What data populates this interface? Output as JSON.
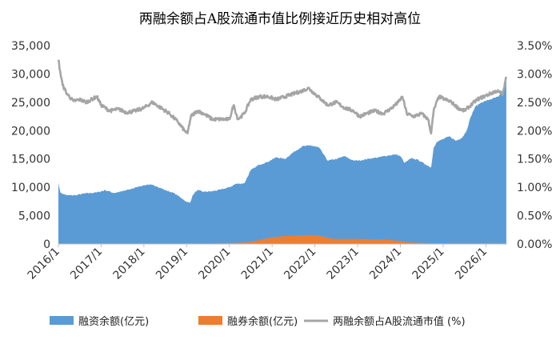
{
  "chart_data": {
    "type": "area",
    "title": "两融余额占A股流通市值比例接近历史相对高位",
    "x_ticks": [
      "2016/1",
      "2017/1",
      "2018/1",
      "2019/1",
      "2020/1",
      "2021/1",
      "2022/1",
      "2023/1",
      "2024/1",
      "2025/1",
      "2026/1"
    ],
    "x_range": [
      2016.0,
      2026.5
    ],
    "y_left": {
      "ticks": [
        "0",
        "5,000",
        "10,000",
        "15,000",
        "20,000",
        "25,000",
        "30,000",
        "35,000"
      ],
      "range": [
        0,
        35000
      ]
    },
    "y_right": {
      "ticks": [
        "0.00%",
        "0.50%",
        "1.00%",
        "1.50%",
        "2.00%",
        "2.50%",
        "3.00%",
        "3.50%"
      ],
      "range": [
        0,
        3.5
      ]
    },
    "legend_position": "bottom",
    "grid": false,
    "series": [
      {
        "name": "融资余额(亿元)",
        "type": "area",
        "axis": "left",
        "color": "#5B9BD5",
        "points": [
          [
            2016.0,
            10800
          ],
          [
            2016.05,
            9000
          ],
          [
            2016.2,
            8600
          ],
          [
            2016.4,
            8600
          ],
          [
            2016.6,
            8900
          ],
          [
            2016.9,
            9100
          ],
          [
            2017.1,
            9500
          ],
          [
            2017.3,
            9000
          ],
          [
            2017.5,
            9300
          ],
          [
            2017.7,
            9700
          ],
          [
            2017.9,
            10200
          ],
          [
            2018.1,
            10500
          ],
          [
            2018.3,
            10200
          ],
          [
            2018.5,
            9500
          ],
          [
            2018.7,
            9000
          ],
          [
            2018.9,
            8000
          ],
          [
            2019.0,
            7400
          ],
          [
            2019.08,
            7300
          ],
          [
            2019.15,
            8700
          ],
          [
            2019.25,
            9500
          ],
          [
            2019.4,
            9200
          ],
          [
            2019.6,
            9300
          ],
          [
            2019.8,
            9600
          ],
          [
            2020.0,
            10000
          ],
          [
            2020.15,
            10600
          ],
          [
            2020.35,
            10700
          ],
          [
            2020.5,
            13000
          ],
          [
            2020.7,
            14000
          ],
          [
            2020.9,
            14500
          ],
          [
            2021.1,
            15300
          ],
          [
            2021.3,
            15000
          ],
          [
            2021.5,
            16200
          ],
          [
            2021.7,
            17200
          ],
          [
            2021.9,
            17400
          ],
          [
            2022.1,
            17000
          ],
          [
            2022.3,
            14700
          ],
          [
            2022.5,
            15000
          ],
          [
            2022.7,
            15500
          ],
          [
            2022.9,
            14700
          ],
          [
            2023.1,
            14800
          ],
          [
            2023.3,
            15100
          ],
          [
            2023.5,
            15300
          ],
          [
            2023.7,
            15600
          ],
          [
            2023.9,
            15800
          ],
          [
            2024.0,
            15500
          ],
          [
            2024.1,
            14300
          ],
          [
            2024.25,
            15100
          ],
          [
            2024.4,
            14900
          ],
          [
            2024.6,
            14000
          ],
          [
            2024.72,
            13500
          ],
          [
            2024.78,
            17000
          ],
          [
            2024.85,
            18000
          ],
          [
            2025.0,
            18500
          ],
          [
            2025.15,
            19000
          ],
          [
            2025.3,
            18200
          ],
          [
            2025.45,
            18800
          ],
          [
            2025.55,
            20000
          ],
          [
            2025.65,
            22500
          ],
          [
            2025.75,
            24200
          ],
          [
            2025.9,
            25000
          ],
          [
            2026.1,
            25500
          ],
          [
            2026.3,
            26000
          ],
          [
            2026.42,
            27500
          ],
          [
            2026.48,
            28800
          ]
        ]
      },
      {
        "name": "融券余额(亿元)",
        "type": "area",
        "axis": "left",
        "color": "#ED7D31",
        "points": [
          [
            2016.0,
            50
          ],
          [
            2019.5,
            50
          ],
          [
            2020.0,
            150
          ],
          [
            2020.4,
            300
          ],
          [
            2020.6,
            500
          ],
          [
            2020.8,
            900
          ],
          [
            2021.0,
            1200
          ],
          [
            2021.3,
            1400
          ],
          [
            2021.6,
            1500
          ],
          [
            2021.9,
            1600
          ],
          [
            2022.1,
            1500
          ],
          [
            2022.3,
            1100
          ],
          [
            2022.5,
            900
          ],
          [
            2022.7,
            900
          ],
          [
            2023.0,
            900
          ],
          [
            2023.3,
            850
          ],
          [
            2023.6,
            800
          ],
          [
            2023.9,
            600
          ],
          [
            2024.1,
            400
          ],
          [
            2024.3,
            250
          ],
          [
            2024.6,
            150
          ],
          [
            2024.9,
            100
          ],
          [
            2025.3,
            80
          ],
          [
            2026.48,
            80
          ]
        ]
      },
      {
        "name": "两融余额占A股流通市值 (%)",
        "type": "line",
        "axis": "right",
        "color": "#A5A5A5",
        "points": [
          [
            2016.0,
            3.25
          ],
          [
            2016.05,
            3.0
          ],
          [
            2016.1,
            2.8
          ],
          [
            2016.2,
            2.65
          ],
          [
            2016.35,
            2.52
          ],
          [
            2016.5,
            2.55
          ],
          [
            2016.65,
            2.5
          ],
          [
            2016.9,
            2.6
          ],
          [
            2017.0,
            2.45
          ],
          [
            2017.2,
            2.35
          ],
          [
            2017.4,
            2.38
          ],
          [
            2017.6,
            2.32
          ],
          [
            2017.8,
            2.35
          ],
          [
            2018.0,
            2.4
          ],
          [
            2018.2,
            2.5
          ],
          [
            2018.4,
            2.4
          ],
          [
            2018.6,
            2.3
          ],
          [
            2018.8,
            2.15
          ],
          [
            2018.95,
            2.0
          ],
          [
            2019.02,
            1.95
          ],
          [
            2019.1,
            2.25
          ],
          [
            2019.25,
            2.35
          ],
          [
            2019.4,
            2.3
          ],
          [
            2019.6,
            2.2
          ],
          [
            2019.8,
            2.2
          ],
          [
            2020.0,
            2.2
          ],
          [
            2020.1,
            2.45
          ],
          [
            2020.2,
            2.2
          ],
          [
            2020.35,
            2.3
          ],
          [
            2020.5,
            2.55
          ],
          [
            2020.7,
            2.6
          ],
          [
            2020.9,
            2.6
          ],
          [
            2021.1,
            2.55
          ],
          [
            2021.3,
            2.6
          ],
          [
            2021.5,
            2.65
          ],
          [
            2021.7,
            2.7
          ],
          [
            2021.85,
            2.75
          ],
          [
            2022.0,
            2.65
          ],
          [
            2022.15,
            2.55
          ],
          [
            2022.3,
            2.45
          ],
          [
            2022.5,
            2.5
          ],
          [
            2022.7,
            2.4
          ],
          [
            2022.9,
            2.35
          ],
          [
            2023.05,
            2.25
          ],
          [
            2023.2,
            2.3
          ],
          [
            2023.4,
            2.35
          ],
          [
            2023.6,
            2.3
          ],
          [
            2023.8,
            2.4
          ],
          [
            2023.95,
            2.5
          ],
          [
            2024.05,
            2.6
          ],
          [
            2024.15,
            2.3
          ],
          [
            2024.3,
            2.25
          ],
          [
            2024.5,
            2.3
          ],
          [
            2024.65,
            2.2
          ],
          [
            2024.72,
            1.95
          ],
          [
            2024.78,
            2.35
          ],
          [
            2024.9,
            2.6
          ],
          [
            2025.05,
            2.55
          ],
          [
            2025.2,
            2.5
          ],
          [
            2025.35,
            2.4
          ],
          [
            2025.5,
            2.35
          ],
          [
            2025.65,
            2.45
          ],
          [
            2025.8,
            2.55
          ],
          [
            2025.95,
            2.6
          ],
          [
            2026.1,
            2.65
          ],
          [
            2026.25,
            2.7
          ],
          [
            2026.4,
            2.65
          ],
          [
            2026.48,
            2.95
          ]
        ]
      }
    ]
  }
}
